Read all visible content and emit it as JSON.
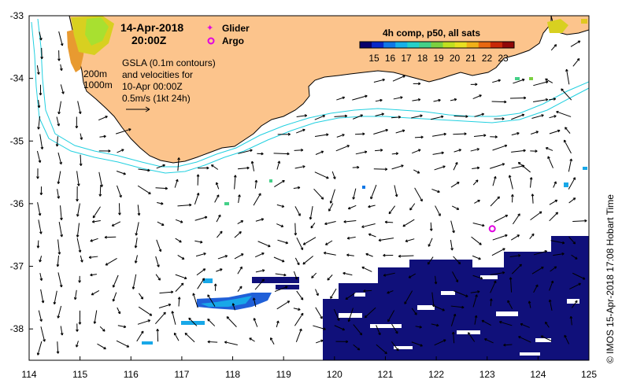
{
  "title": {
    "date": "14-Apr-2018",
    "time": "20:00Z"
  },
  "legend": {
    "glider": "Glider",
    "argo": "Argo",
    "glider_color": "#e000e0",
    "argo_color": "#e000e0"
  },
  "colorbar": {
    "title": "4h comp, p50, all sats",
    "ticks": [
      "15",
      "16",
      "17",
      "18",
      "19",
      "20",
      "21",
      "22",
      "23"
    ],
    "colors": [
      "#08006b",
      "#0828c8",
      "#1077e6",
      "#18b0e8",
      "#26d0c8",
      "#44d088",
      "#7bd040",
      "#c0e020",
      "#e8e020",
      "#f0b018",
      "#e86810",
      "#c82808",
      "#900808"
    ]
  },
  "annotations": {
    "contour_200": "200m",
    "contour_1000": "1000m",
    "gsla_line1": "GSLA (0.1m contours)",
    "gsla_line2": "and velocities for",
    "gsla_line3": "10-Apr 00:00Z",
    "gsla_line4": "0.5m/s (1kt 24h)"
  },
  "axes": {
    "x_ticks": [
      "114",
      "115",
      "116",
      "117",
      "118",
      "119",
      "120",
      "121",
      "122",
      "123",
      "124",
      "125"
    ],
    "y_ticks": [
      "-33",
      "-34",
      "-35",
      "-36",
      "-37",
      "-38"
    ],
    "lon_range": [
      114,
      125
    ],
    "lat_range": [
      -38.5,
      -33
    ]
  },
  "argo_float": {
    "lon": 123.1,
    "lat": -36.4
  },
  "side_label": "© IMOS 15-Apr-2018 17:08 Hobart Time",
  "colors": {
    "land": "#fcc48c",
    "coast": "#000000",
    "bathy": "#22d0e0"
  }
}
